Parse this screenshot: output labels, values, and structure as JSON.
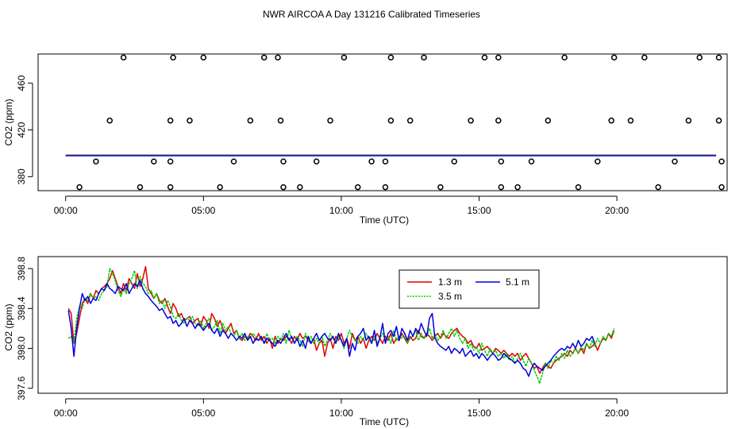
{
  "title": "NWR AIRCOA A  Day 131216  Calibrated Timeseries",
  "colors": {
    "red": "#e00000",
    "green": "#00cc00",
    "blue": "#0000e0",
    "black": "#000000"
  },
  "chart_data": [
    {
      "type": "scatter",
      "name": "top",
      "xlabel": "Time (UTC)",
      "ylabel": "CO2 (ppm)",
      "xlim": [
        -1.0,
        24.0
      ],
      "ylim": [
        368,
        485
      ],
      "xticks": [
        0,
        5,
        10,
        15,
        20
      ],
      "xtick_labels": [
        "00:00",
        "05:00",
        "10:00",
        "15:00",
        "20:00"
      ],
      "yticks": [
        380,
        420,
        460
      ],
      "ytick_labels": [
        "380",
        "420",
        "460"
      ],
      "circles": {
        "levels": [
          371.0,
          393.0,
          428.0,
          482.0
        ],
        "x": [
          [
            0.5,
            2.7,
            3.8,
            5.6,
            7.9,
            8.5,
            10.6,
            11.6,
            13.6,
            15.8,
            16.4,
            18.6,
            21.5,
            23.8
          ],
          [
            1.1,
            3.2,
            3.8,
            6.1,
            7.9,
            9.1,
            11.1,
            11.6,
            14.1,
            15.8,
            16.9,
            19.3,
            22.1,
            23.8
          ],
          [
            1.6,
            3.8,
            4.5,
            6.7,
            7.8,
            9.6,
            11.8,
            12.5,
            14.7,
            15.7,
            17.5,
            19.8,
            20.5,
            22.6,
            23.7
          ],
          [
            2.1,
            3.9,
            5.0,
            7.2,
            7.7,
            10.1,
            11.8,
            13.0,
            15.2,
            15.7,
            18.1,
            19.9,
            21.0,
            23.0,
            23.7
          ]
        ]
      },
      "lines": {
        "x_start": 0.0,
        "x_end": 23.6,
        "value": 398.2
      }
    },
    {
      "type": "line",
      "name": "bottom",
      "xlabel": "Time (UTC)",
      "ylabel": "CO2 (ppm)",
      "xlim": [
        -1.0,
        24.0
      ],
      "ylim": [
        397.55,
        398.92
      ],
      "xticks": [
        0,
        5,
        10,
        15,
        20
      ],
      "xtick_labels": [
        "00:00",
        "05:00",
        "10:00",
        "15:00",
        "20:00"
      ],
      "yticks": [
        397.6,
        398.0,
        398.4,
        398.8
      ],
      "ytick_labels": [
        "397.6",
        "398.0",
        "398.4",
        "398.8"
      ],
      "legend": {
        "position": "top-center",
        "entries": [
          "1.3 m",
          "5.1 m",
          "3.5 m"
        ]
      },
      "series": [
        {
          "name": "1.3 m",
          "color": "red",
          "x_start": 0.1,
          "x_step": 0.1,
          "values": [
            398.4,
            398.35,
            398.05,
            398.15,
            398.3,
            398.45,
            398.5,
            398.45,
            398.55,
            398.5,
            398.58,
            398.55,
            398.6,
            398.62,
            398.65,
            398.7,
            398.78,
            398.7,
            398.62,
            398.55,
            398.65,
            398.58,
            398.7,
            398.65,
            398.6,
            398.75,
            398.62,
            398.7,
            398.82,
            398.6,
            398.55,
            398.5,
            398.55,
            398.48,
            398.45,
            398.5,
            398.42,
            398.35,
            398.45,
            398.4,
            398.32,
            398.35,
            398.28,
            398.3,
            398.32,
            398.25,
            398.28,
            398.3,
            398.22,
            398.32,
            398.28,
            398.2,
            398.35,
            398.3,
            398.22,
            398.28,
            398.2,
            398.15,
            398.2,
            398.25,
            398.15,
            398.18,
            398.1,
            398.08,
            398.12,
            398.1,
            398.15,
            398.12,
            398.08,
            398.15,
            398.08,
            398.12,
            398.05,
            398.1,
            398.0,
            398.12,
            398.05,
            398.1,
            398.08,
            398.12,
            398.1,
            398.05,
            398.12,
            398.08,
            398.15,
            398.1,
            398.12,
            398.08,
            398.05,
            398.1,
            397.98,
            398.05,
            398.08,
            397.92,
            398.05,
            398.1,
            398.0,
            398.12,
            398.08,
            398.15,
            398.05,
            398.1,
            398.0,
            398.15,
            398.08,
            398.12,
            398.05,
            398.1,
            398.0,
            398.08,
            398.12,
            398.08,
            398.15,
            398.1,
            398.05,
            398.12,
            398.08,
            398.15,
            398.05,
            398.1,
            398.08,
            398.15,
            398.1,
            398.05,
            398.12,
            398.08,
            398.1,
            398.18,
            398.12,
            398.1,
            398.15,
            398.12,
            398.08,
            398.12,
            398.15,
            398.1,
            398.15,
            398.12,
            398.1,
            398.15,
            398.18,
            398.2,
            398.15,
            398.12,
            398.1,
            398.05,
            398.08,
            398.02,
            398.0,
            398.05,
            397.98,
            398.0,
            398.02,
            397.98,
            397.95,
            398.0,
            397.98,
            397.95,
            397.98,
            397.95,
            397.92,
            397.95,
            397.92,
            397.95,
            397.88,
            397.92,
            397.95,
            397.9,
            397.85,
            397.8,
            397.82,
            397.75,
            397.8,
            397.85,
            397.82,
            397.8,
            397.85,
            397.88,
            397.9,
            397.92,
            397.95,
            397.92,
            397.98,
            397.95,
            398.0,
            397.95,
            398.0,
            397.95,
            398.05,
            398.0,
            398.02,
            398.05,
            397.98,
            398.05,
            398.1,
            398.08,
            398.15,
            398.1,
            398.18
          ]
        },
        {
          "name": "3.5 m",
          "color": "green",
          "x_start": 0.1,
          "x_step": 0.1,
          "values": [
            398.1,
            398.12,
            398.05,
            398.3,
            398.42,
            398.4,
            398.5,
            398.48,
            398.55,
            398.5,
            398.52,
            398.48,
            398.55,
            398.58,
            398.62,
            398.8,
            398.75,
            398.68,
            398.58,
            398.52,
            398.6,
            398.55,
            398.65,
            398.7,
            398.78,
            398.6,
            398.72,
            398.65,
            398.62,
            398.55,
            398.58,
            398.5,
            398.55,
            398.45,
            398.48,
            398.4,
            398.48,
            398.42,
            398.32,
            398.3,
            398.35,
            398.28,
            398.25,
            398.3,
            398.28,
            398.32,
            398.25,
            398.22,
            398.28,
            398.2,
            398.25,
            398.3,
            398.18,
            398.22,
            398.28,
            398.15,
            398.25,
            398.18,
            398.22,
            398.15,
            398.12,
            398.18,
            398.1,
            398.15,
            398.08,
            398.12,
            398.1,
            398.15,
            398.12,
            398.08,
            398.12,
            398.05,
            398.15,
            398.08,
            398.1,
            398.05,
            398.12,
            398.08,
            398.15,
            398.05,
            398.18,
            398.1,
            398.05,
            398.12,
            398.08,
            398.02,
            398.15,
            398.08,
            398.12,
            398.05,
            398.1,
            398.05,
            398.12,
            398.02,
            398.08,
            398.15,
            398.1,
            398.05,
            398.12,
            398.08,
            398.0,
            398.1,
            398.18,
            398.12,
            398.08,
            398.05,
            398.12,
            398.08,
            398.15,
            398.1,
            398.05,
            398.12,
            398.05,
            398.1,
            398.15,
            398.08,
            398.12,
            398.05,
            398.18,
            398.08,
            398.12,
            398.1,
            398.15,
            398.05,
            398.1,
            398.12,
            398.18,
            398.08,
            398.15,
            398.1,
            398.12,
            398.2,
            398.1,
            398.15,
            398.08,
            398.12,
            398.18,
            398.1,
            398.15,
            398.2,
            398.12,
            398.18,
            398.1,
            398.05,
            398.1,
            398.0,
            398.05,
            397.98,
            398.02,
            397.95,
            398.05,
            397.98,
            397.92,
            398.0,
            397.95,
            397.98,
            397.92,
            397.95,
            397.9,
            397.95,
            397.88,
            397.92,
            397.85,
            397.9,
            397.95,
            397.88,
            397.82,
            397.9,
            397.85,
            397.78,
            397.72,
            397.65,
            397.75,
            397.85,
            397.8,
            397.88,
            397.85,
            397.92,
            397.88,
            397.95,
            397.9,
            397.98,
            397.92,
            397.95,
            398.0,
            397.95,
            398.02,
            397.98,
            398.05,
            398.0,
            398.08,
            398.02,
            398.1,
            398.05,
            398.12,
            398.08,
            398.15,
            398.12,
            398.2
          ]
        },
        {
          "name": "5.1 m",
          "color": "blue",
          "x_start": 0.1,
          "x_step": 0.1,
          "values": [
            398.38,
            398.2,
            397.92,
            398.2,
            398.4,
            398.55,
            398.48,
            398.52,
            398.45,
            398.5,
            398.48,
            398.55,
            398.6,
            398.58,
            398.65,
            398.6,
            398.58,
            398.55,
            398.62,
            398.6,
            398.58,
            398.65,
            398.55,
            398.6,
            398.65,
            398.62,
            398.68,
            398.6,
            398.55,
            398.52,
            398.48,
            398.45,
            398.42,
            398.38,
            398.4,
            398.35,
            398.3,
            398.32,
            398.25,
            398.28,
            398.22,
            398.25,
            398.3,
            398.22,
            398.28,
            398.25,
            398.2,
            398.25,
            398.22,
            398.18,
            398.22,
            398.25,
            398.18,
            398.15,
            398.2,
            398.12,
            398.18,
            398.15,
            398.1,
            398.15,
            398.12,
            398.08,
            398.12,
            398.1,
            398.15,
            398.08,
            398.12,
            398.05,
            398.1,
            398.08,
            398.12,
            398.05,
            398.1,
            398.08,
            398.05,
            398.02,
            398.08,
            398.05,
            398.1,
            398.15,
            398.08,
            398.12,
            398.05,
            398.1,
            398.02,
            398.08,
            398.0,
            398.12,
            398.05,
            398.1,
            398.15,
            398.08,
            398.12,
            398.15,
            398.1,
            398.08,
            398.12,
            398.05,
            398.15,
            398.08,
            398.02,
            398.1,
            397.92,
            398.05,
            397.98,
            398.12,
            398.15,
            398.2,
            398.08,
            398.12,
            398.05,
            398.18,
            398.02,
            398.1,
            398.25,
            398.05,
            398.15,
            398.18,
            398.12,
            398.22,
            398.08,
            398.2,
            398.15,
            398.08,
            398.18,
            398.12,
            398.2,
            398.15,
            398.25,
            398.18,
            398.12,
            398.3,
            398.35,
            398.1,
            398.05,
            398.02,
            398.0,
            397.98,
            398.02,
            397.95,
            398.0,
            397.98,
            397.95,
            398.0,
            397.92,
            397.95,
            397.98,
            397.92,
            397.95,
            397.9,
            397.95,
            397.92,
            397.88,
            397.92,
            397.95,
            397.92,
            397.88,
            397.9,
            397.95,
            397.92,
            397.9,
            397.88,
            397.85,
            397.88,
            397.85,
            397.8,
            397.78,
            397.72,
            397.8,
            397.85,
            397.82,
            397.8,
            397.78,
            397.82,
            397.85,
            397.88,
            397.92,
            397.95,
            397.98,
            398.0,
            397.98,
            398.02,
            398.0,
            398.05,
            398.0,
            398.08,
            398.02,
            398.05,
            398.1,
            398.08,
            398.12,
            398.05
          ]
        }
      ]
    }
  ]
}
